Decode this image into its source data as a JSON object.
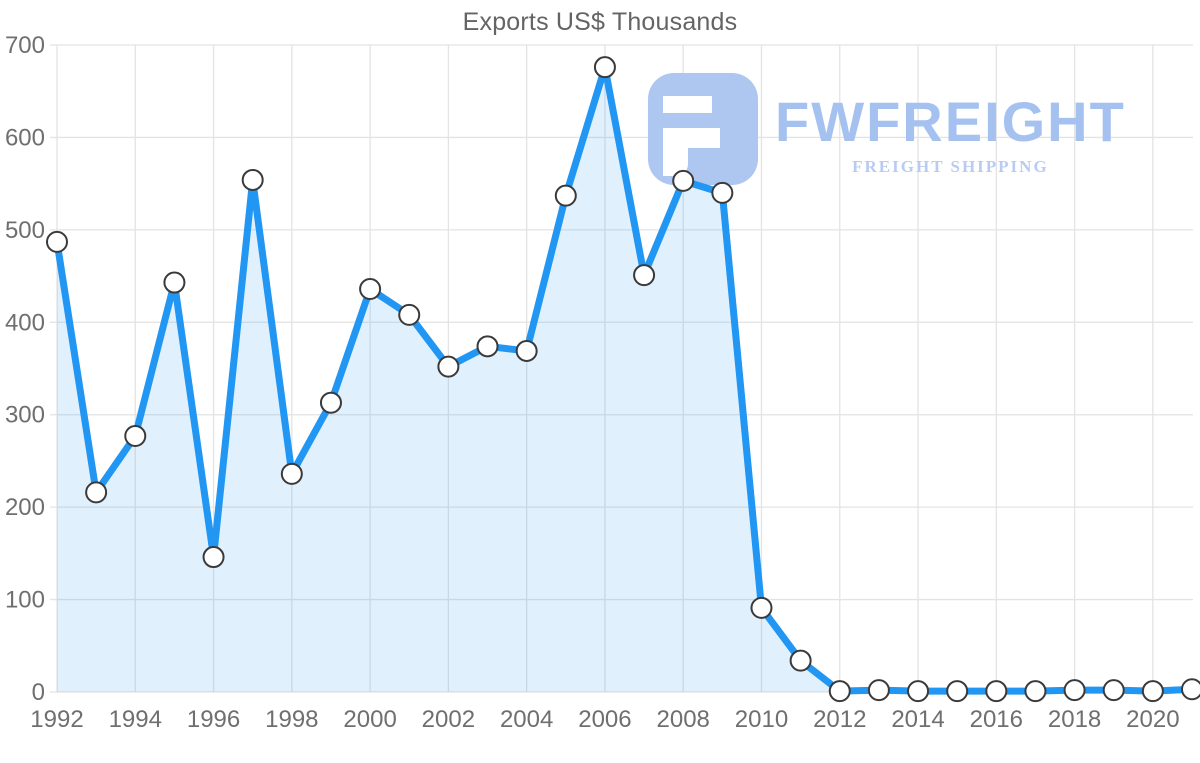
{
  "chart_data": {
    "type": "area",
    "title": "Exports US$ Thousands",
    "xlabel": "",
    "ylabel": "",
    "x": [
      1992,
      1993,
      1994,
      1995,
      1996,
      1997,
      1998,
      1999,
      2000,
      2001,
      2002,
      2003,
      2004,
      2005,
      2006,
      2007,
      2008,
      2009,
      2010,
      2011,
      2012,
      2013,
      2014,
      2015,
      2016,
      2017,
      2018,
      2019,
      2020,
      2021
    ],
    "values": [
      487,
      216,
      277,
      443,
      146,
      554,
      236,
      313,
      436,
      408,
      352,
      374,
      369,
      537,
      676,
      451,
      553,
      540,
      91,
      34,
      1,
      2,
      1,
      1,
      1,
      1,
      2,
      2,
      1,
      3
    ],
    "ylim": [
      0,
      700
    ],
    "yticks": [
      0,
      100,
      200,
      300,
      400,
      500,
      600,
      700
    ],
    "xticks": [
      1992,
      1994,
      1996,
      1998,
      2000,
      2002,
      2004,
      2006,
      2008,
      2010,
      2012,
      2014,
      2016,
      2018,
      2020
    ],
    "grid": true,
    "legend_position": "none",
    "colors": {
      "line": "#2196f3",
      "fill": "#2196f3",
      "fill_opacity": 0.14,
      "marker_fill": "#ffffff",
      "marker_stroke": "#3a3a3a",
      "grid": "#e3e3e3",
      "tick_label": "#6f6f6f",
      "title": "#646464"
    }
  },
  "logo": {
    "wordmark": "FWFREIGHT",
    "tagline": "FREIGHT SHIPPING",
    "color": "#a5c1f0",
    "tagline_color": "#b7cbf3",
    "icon_color": "#aec7f1"
  }
}
